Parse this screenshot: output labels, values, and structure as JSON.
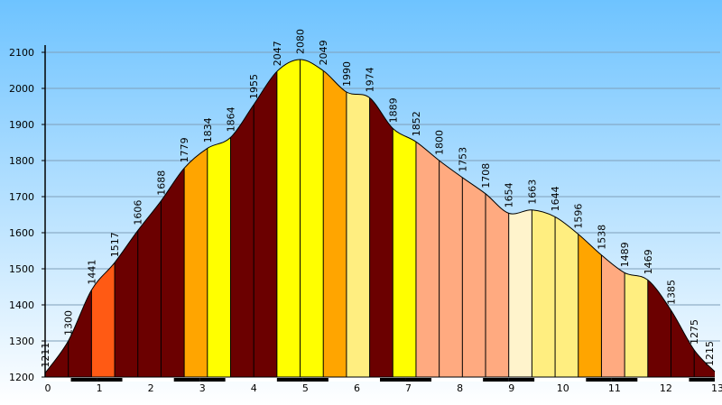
{
  "chart_data": {
    "type": "area",
    "title": "",
    "xlabel": "",
    "ylabel": "",
    "xlim": [
      0,
      13
    ],
    "ylim": [
      1200,
      2120
    ],
    "grid": true,
    "x_ticks": [
      "0",
      "1",
      "2",
      "3",
      "4",
      "5",
      "6",
      "7",
      "8",
      "9",
      "10",
      "11",
      "12",
      "13"
    ],
    "y_ticks": [
      "1200",
      "1300",
      "1400",
      "1500",
      "1600",
      "1700",
      "1800",
      "1900",
      "2000",
      "2100"
    ],
    "points": [
      {
        "x": 0.0,
        "y": 1211,
        "label": "1211"
      },
      {
        "x": 0.45,
        "y": 1300,
        "label": "1300"
      },
      {
        "x": 0.9,
        "y": 1441,
        "label": "1441"
      },
      {
        "x": 1.35,
        "y": 1517,
        "label": "1517"
      },
      {
        "x": 1.8,
        "y": 1606,
        "label": "1606"
      },
      {
        "x": 2.25,
        "y": 1688,
        "label": "1688"
      },
      {
        "x": 2.7,
        "y": 1779,
        "label": "1779"
      },
      {
        "x": 3.15,
        "y": 1834,
        "label": "1834"
      },
      {
        "x": 3.6,
        "y": 1864,
        "label": "1864"
      },
      {
        "x": 4.05,
        "y": 1955,
        "label": "1955"
      },
      {
        "x": 4.5,
        "y": 2047,
        "label": "2047"
      },
      {
        "x": 4.95,
        "y": 2080,
        "label": "2080"
      },
      {
        "x": 5.4,
        "y": 2049,
        "label": "2049"
      },
      {
        "x": 5.85,
        "y": 1990,
        "label": "1990"
      },
      {
        "x": 6.3,
        "y": 1974,
        "label": "1974"
      },
      {
        "x": 6.75,
        "y": 1889,
        "label": "1889"
      },
      {
        "x": 7.2,
        "y": 1852,
        "label": "1852"
      },
      {
        "x": 7.65,
        "y": 1800,
        "label": "1800"
      },
      {
        "x": 8.1,
        "y": 1753,
        "label": "1753"
      },
      {
        "x": 8.55,
        "y": 1708,
        "label": "1708"
      },
      {
        "x": 9.0,
        "y": 1654,
        "label": "1654"
      },
      {
        "x": 9.45,
        "y": 1663,
        "label": "1663"
      },
      {
        "x": 9.9,
        "y": 1644,
        "label": "1644"
      },
      {
        "x": 10.35,
        "y": 1596,
        "label": "1596"
      },
      {
        "x": 10.8,
        "y": 1538,
        "label": "1538"
      },
      {
        "x": 11.25,
        "y": 1489,
        "label": "1489"
      },
      {
        "x": 11.7,
        "y": 1469,
        "label": "1469"
      },
      {
        "x": 12.15,
        "y": 1385,
        "label": "1385"
      },
      {
        "x": 12.6,
        "y": 1275,
        "label": "1275"
      },
      {
        "x": 13.0,
        "y": 1215,
        "label": "1215"
      }
    ],
    "segment_colors": [
      "#6b0000",
      "#6b0000",
      "#ff5a14",
      "#6b0000",
      "#6b0000",
      "#6b0000",
      "#ffa500",
      "#ffff00",
      "#6b0000",
      "#6b0000",
      "#ffff00",
      "#ffff00",
      "#ffa500",
      "#ffee80",
      "#6b0000",
      "#ffff00",
      "#ffaa80",
      "#ffaa80",
      "#ffaa80",
      "#ffaa80",
      "#fff4cc",
      "#ffee80",
      "#ffee80",
      "#ffa500",
      "#ffaa80",
      "#ffee80",
      "#6b0000",
      "#6b0000",
      "#6b0000"
    ]
  }
}
